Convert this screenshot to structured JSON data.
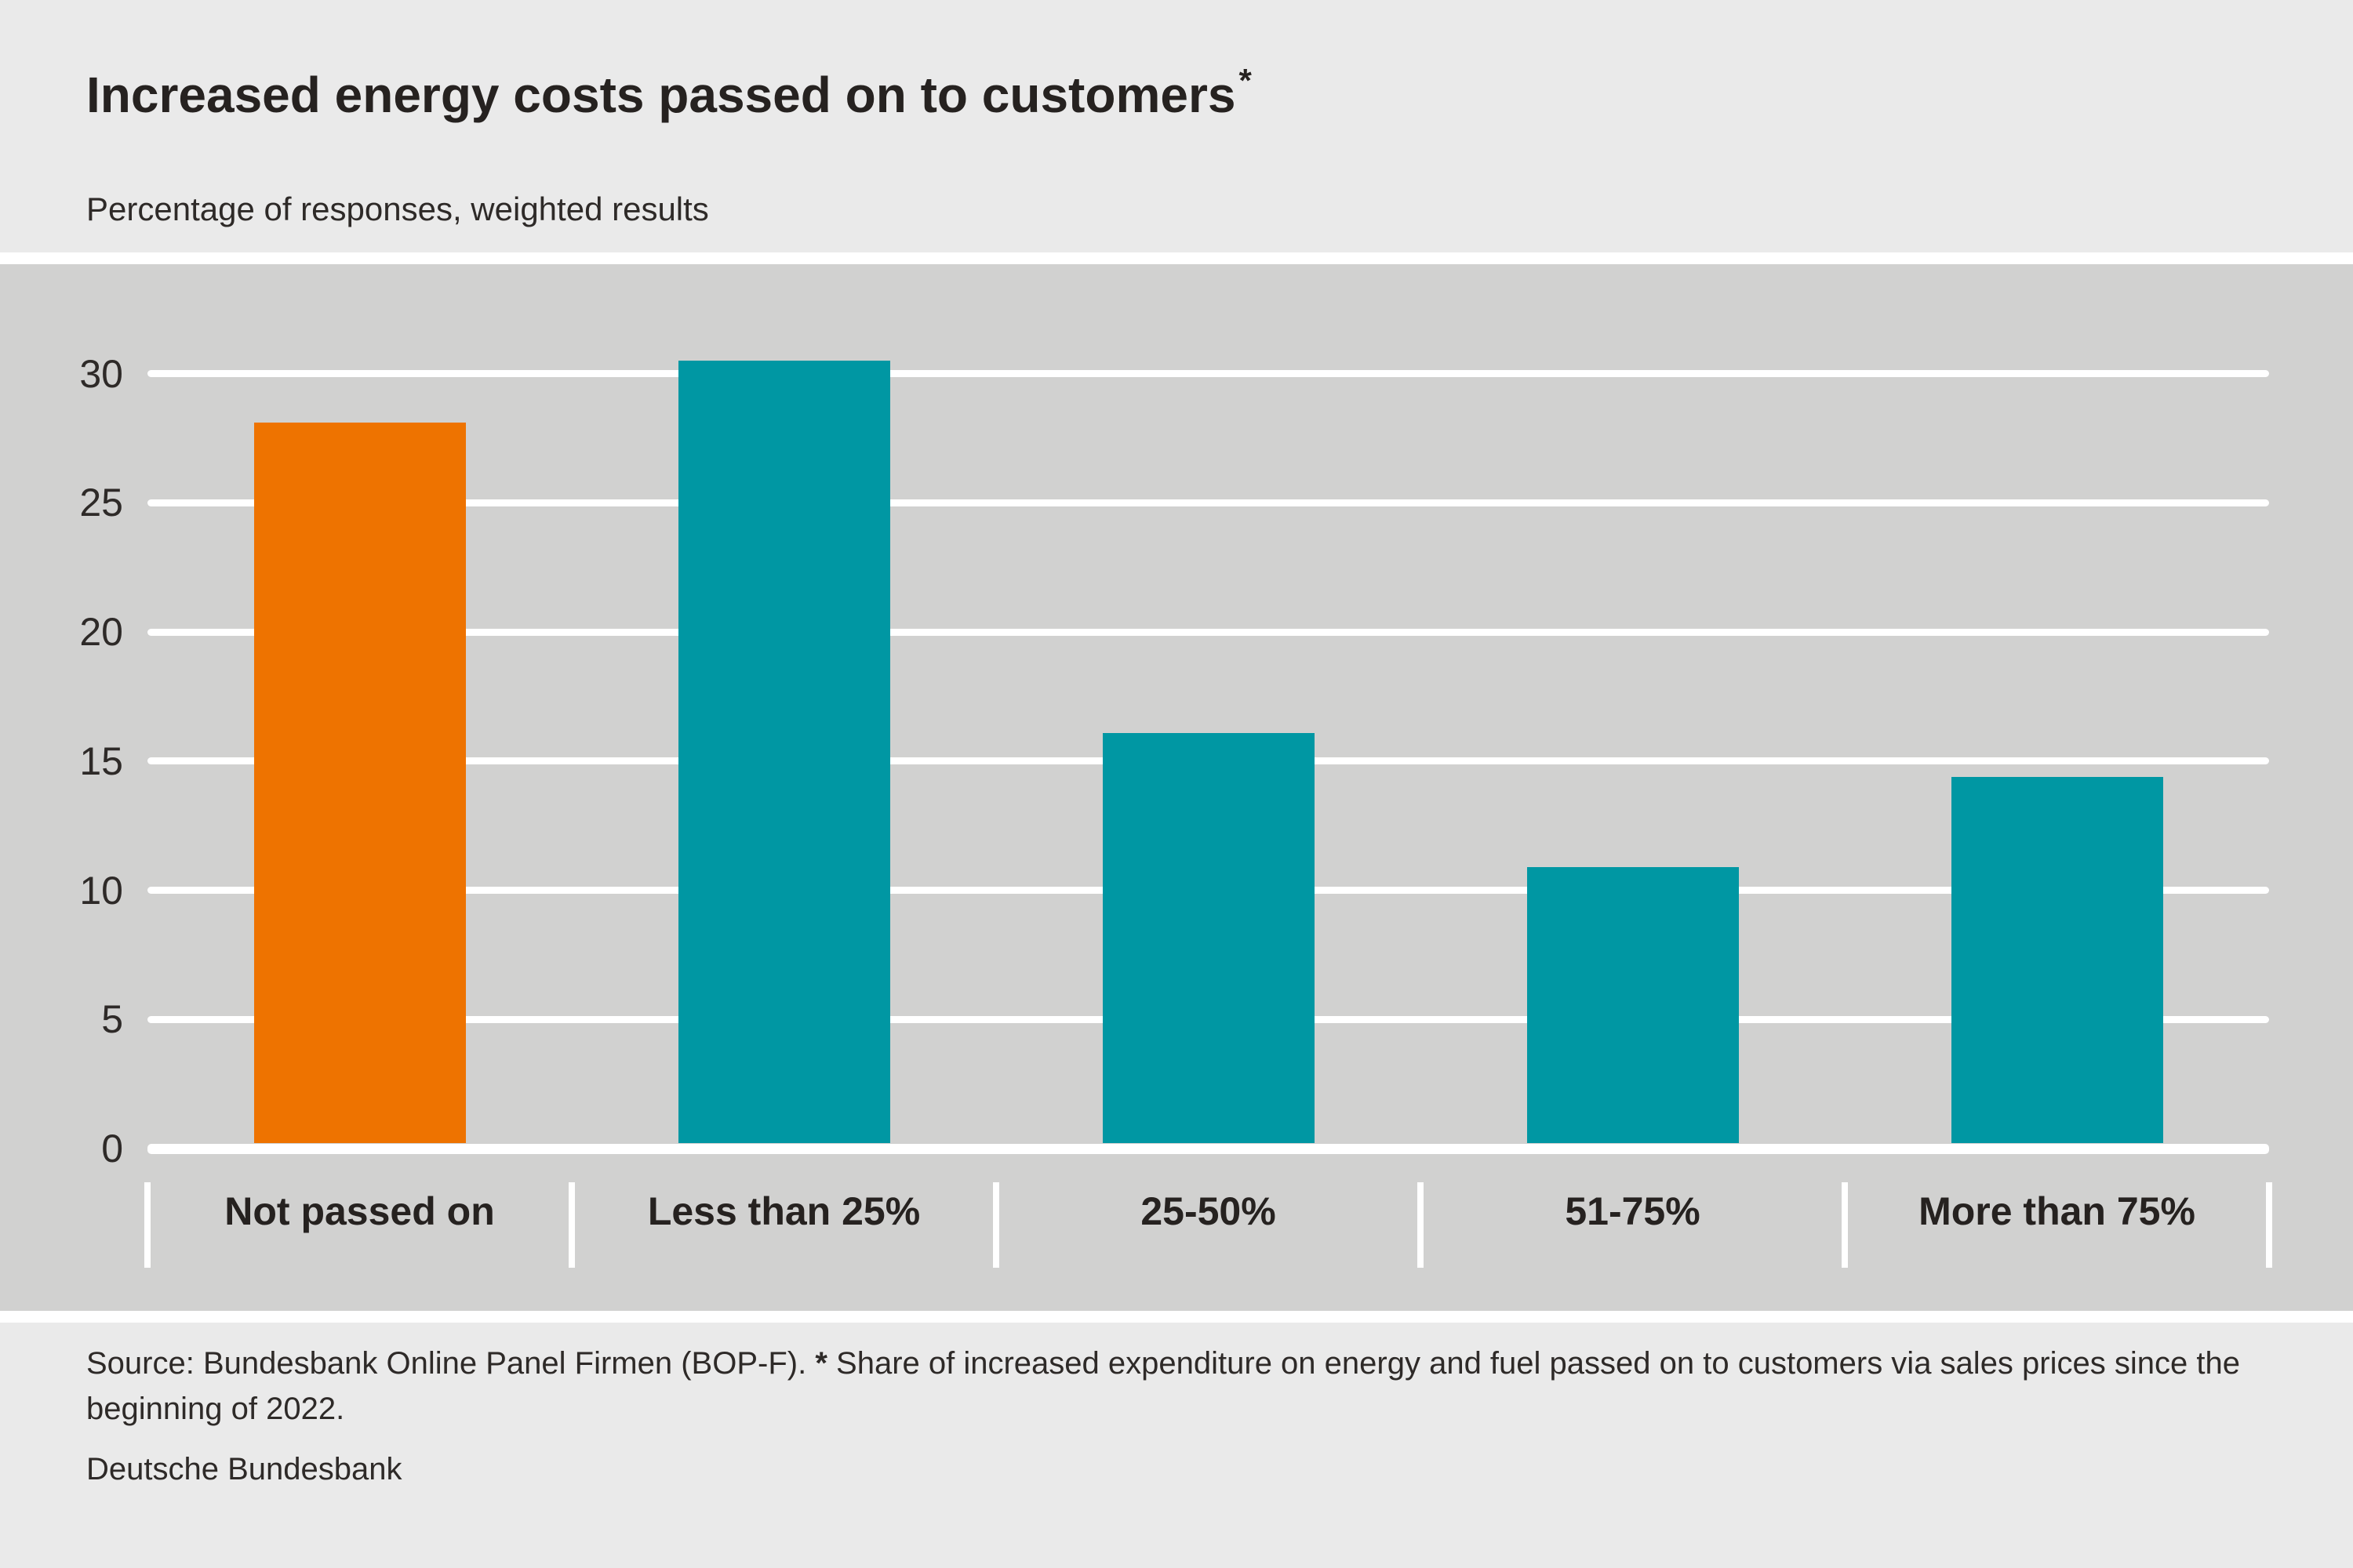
{
  "header": {
    "title": "Increased energy costs passed on to customers",
    "title_asterisk": "*",
    "subtitle": "Percentage of responses, weighted results"
  },
  "footer": {
    "source_prefix": "Source: Bundesbank Online Panel Firmen (BOP-F).",
    "source_star": "*",
    "source_note": "Share of increased expenditure on energy and fuel passed on to customers via sales prices since the beginning of 2022.",
    "publisher": "Deutsche Bundesbank"
  },
  "colors": {
    "page_background": "#eaeaea",
    "plot_background": "#d1d1d0",
    "gridline": "#ffffff",
    "text": "#2e2a28",
    "highlight_bar_orange": "#ee7300",
    "default_bar_teal": "#0097a3"
  },
  "chart_data": {
    "type": "bar",
    "title": "Increased energy costs passed on to customers*",
    "subtitle": "Percentage of responses, weighted results",
    "categories": [
      "Not passed on",
      "Less than 25%",
      "25-50%",
      "51-75%",
      "More than 75%"
    ],
    "values": [
      28.1,
      30.5,
      16.1,
      10.9,
      14.4
    ],
    "bar_colors": [
      "#ee7300",
      "#0097a3",
      "#0097a3",
      "#0097a3",
      "#0097a3"
    ],
    "xlabel": "",
    "ylabel": "Percentage of responses, weighted results",
    "ylim": [
      0,
      30
    ],
    "yticks": [
      0,
      5,
      10,
      15,
      20,
      25,
      30
    ],
    "grid": true,
    "gridline_color": "#ffffff",
    "legend": false,
    "annotation": "First category highlighted in orange, remaining categories teal"
  }
}
